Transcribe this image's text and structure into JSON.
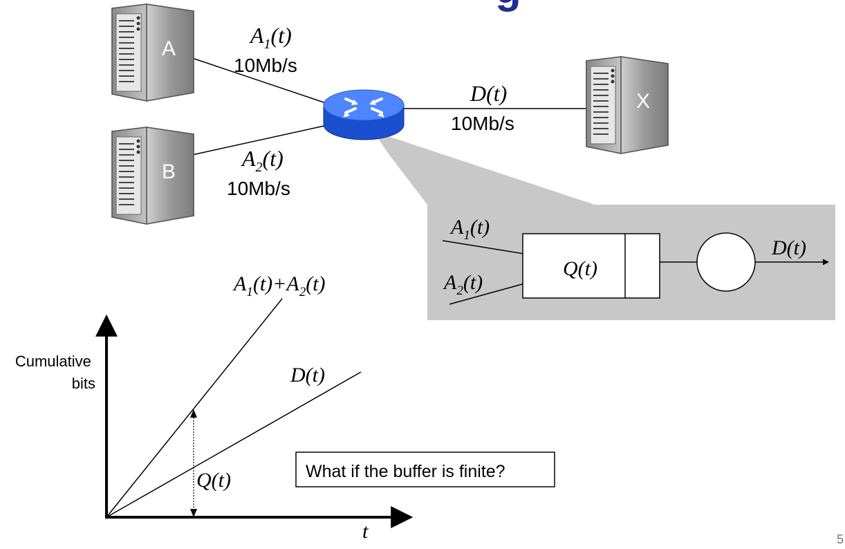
{
  "title_fragment": "g",
  "servers": {
    "a": {
      "label": "A",
      "icon": "server-icon"
    },
    "b": {
      "label": "B",
      "icon": "server-icon"
    },
    "x": {
      "label": "X",
      "icon": "server-icon"
    }
  },
  "router": {
    "icon": "router-icon"
  },
  "links": {
    "a1": {
      "name": "A",
      "sub": "1",
      "arg": "(t)",
      "rate": "10Mb/s"
    },
    "a2": {
      "name": "A",
      "sub": "2",
      "arg": "(t)",
      "rate": "10Mb/s"
    },
    "d": {
      "name": "D",
      "arg": "(t)",
      "rate": "10Mb/s"
    }
  },
  "queue_model": {
    "in1": {
      "name": "A",
      "sub": "1",
      "arg": "(t)"
    },
    "in2": {
      "name": "A",
      "sub": "2",
      "arg": "(t)"
    },
    "buffer": {
      "name": "Q",
      "arg": "(t)"
    },
    "out": {
      "name": "D",
      "arg": "(t)"
    }
  },
  "plot": {
    "ylabel_line1": "Cumulative",
    "ylabel_line2": "bits",
    "xlabel": "t",
    "arrival_label": {
      "n1": "A",
      "s1": "1",
      "a1": "(t)",
      "plus": "+",
      "n2": "A",
      "s2": "2",
      "a2": "(t)"
    },
    "departure_label": {
      "name": "D",
      "arg": "(t)"
    },
    "queue_label": {
      "name": "Q",
      "arg": "(t)"
    }
  },
  "callout_text": "What if the buffer is finite?",
  "page_number": "5",
  "colors": {
    "title": "#1f2f8f",
    "router_top": "#4f86ff",
    "router_side": "#1a4fcf",
    "callout_bg": "#c8c8c8",
    "server_body": "#a9a9a9"
  }
}
